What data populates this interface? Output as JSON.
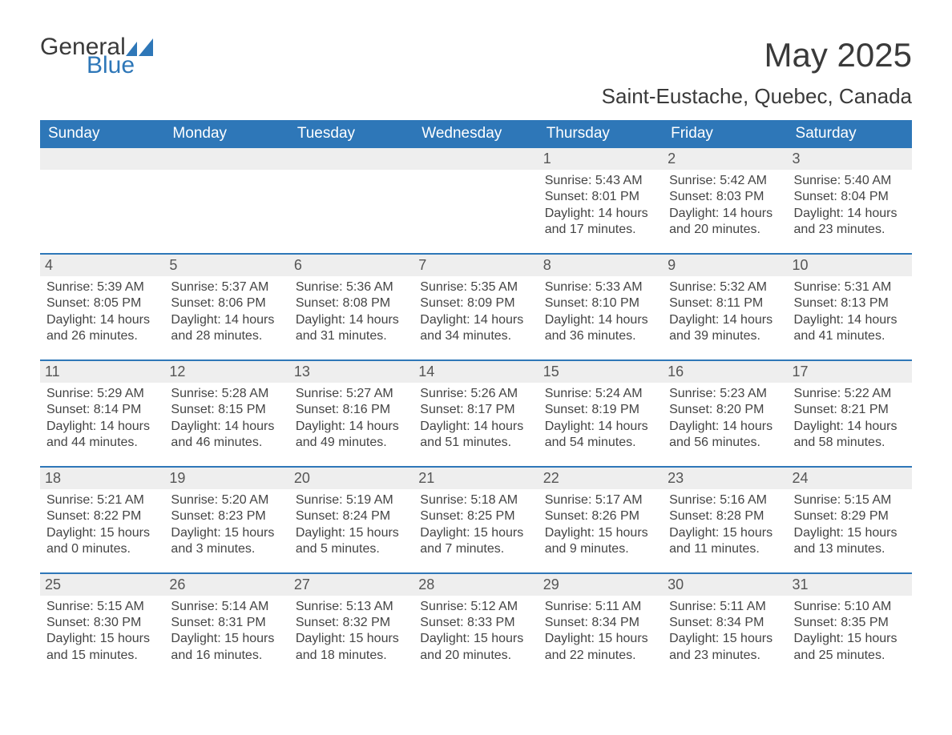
{
  "logo": {
    "general": "General",
    "blue": "Blue",
    "glyph_color": "#2e77b8"
  },
  "header": {
    "month_title": "May 2025",
    "location": "Saint-Eustache, Quebec, Canada"
  },
  "colors": {
    "header_bg": "#2e77b8",
    "header_fg": "#ffffff",
    "daynum_bg": "#eeeeee",
    "daynum_border": "#2e77b8",
    "text": "#3a3a3a"
  },
  "days_of_week": [
    "Sunday",
    "Monday",
    "Tuesday",
    "Wednesday",
    "Thursday",
    "Friday",
    "Saturday"
  ],
  "weeks": [
    [
      null,
      null,
      null,
      null,
      {
        "n": "1",
        "sr": "5:43 AM",
        "ss": "8:01 PM",
        "dl": "14 hours and 17 minutes."
      },
      {
        "n": "2",
        "sr": "5:42 AM",
        "ss": "8:03 PM",
        "dl": "14 hours and 20 minutes."
      },
      {
        "n": "3",
        "sr": "5:40 AM",
        "ss": "8:04 PM",
        "dl": "14 hours and 23 minutes."
      }
    ],
    [
      {
        "n": "4",
        "sr": "5:39 AM",
        "ss": "8:05 PM",
        "dl": "14 hours and 26 minutes."
      },
      {
        "n": "5",
        "sr": "5:37 AM",
        "ss": "8:06 PM",
        "dl": "14 hours and 28 minutes."
      },
      {
        "n": "6",
        "sr": "5:36 AM",
        "ss": "8:08 PM",
        "dl": "14 hours and 31 minutes."
      },
      {
        "n": "7",
        "sr": "5:35 AM",
        "ss": "8:09 PM",
        "dl": "14 hours and 34 minutes."
      },
      {
        "n": "8",
        "sr": "5:33 AM",
        "ss": "8:10 PM",
        "dl": "14 hours and 36 minutes."
      },
      {
        "n": "9",
        "sr": "5:32 AM",
        "ss": "8:11 PM",
        "dl": "14 hours and 39 minutes."
      },
      {
        "n": "10",
        "sr": "5:31 AM",
        "ss": "8:13 PM",
        "dl": "14 hours and 41 minutes."
      }
    ],
    [
      {
        "n": "11",
        "sr": "5:29 AM",
        "ss": "8:14 PM",
        "dl": "14 hours and 44 minutes."
      },
      {
        "n": "12",
        "sr": "5:28 AM",
        "ss": "8:15 PM",
        "dl": "14 hours and 46 minutes."
      },
      {
        "n": "13",
        "sr": "5:27 AM",
        "ss": "8:16 PM",
        "dl": "14 hours and 49 minutes."
      },
      {
        "n": "14",
        "sr": "5:26 AM",
        "ss": "8:17 PM",
        "dl": "14 hours and 51 minutes."
      },
      {
        "n": "15",
        "sr": "5:24 AM",
        "ss": "8:19 PM",
        "dl": "14 hours and 54 minutes."
      },
      {
        "n": "16",
        "sr": "5:23 AM",
        "ss": "8:20 PM",
        "dl": "14 hours and 56 minutes."
      },
      {
        "n": "17",
        "sr": "5:22 AM",
        "ss": "8:21 PM",
        "dl": "14 hours and 58 minutes."
      }
    ],
    [
      {
        "n": "18",
        "sr": "5:21 AM",
        "ss": "8:22 PM",
        "dl": "15 hours and 0 minutes."
      },
      {
        "n": "19",
        "sr": "5:20 AM",
        "ss": "8:23 PM",
        "dl": "15 hours and 3 minutes."
      },
      {
        "n": "20",
        "sr": "5:19 AM",
        "ss": "8:24 PM",
        "dl": "15 hours and 5 minutes."
      },
      {
        "n": "21",
        "sr": "5:18 AM",
        "ss": "8:25 PM",
        "dl": "15 hours and 7 minutes."
      },
      {
        "n": "22",
        "sr": "5:17 AM",
        "ss": "8:26 PM",
        "dl": "15 hours and 9 minutes."
      },
      {
        "n": "23",
        "sr": "5:16 AM",
        "ss": "8:28 PM",
        "dl": "15 hours and 11 minutes."
      },
      {
        "n": "24",
        "sr": "5:15 AM",
        "ss": "8:29 PM",
        "dl": "15 hours and 13 minutes."
      }
    ],
    [
      {
        "n": "25",
        "sr": "5:15 AM",
        "ss": "8:30 PM",
        "dl": "15 hours and 15 minutes."
      },
      {
        "n": "26",
        "sr": "5:14 AM",
        "ss": "8:31 PM",
        "dl": "15 hours and 16 minutes."
      },
      {
        "n": "27",
        "sr": "5:13 AM",
        "ss": "8:32 PM",
        "dl": "15 hours and 18 minutes."
      },
      {
        "n": "28",
        "sr": "5:12 AM",
        "ss": "8:33 PM",
        "dl": "15 hours and 20 minutes."
      },
      {
        "n": "29",
        "sr": "5:11 AM",
        "ss": "8:34 PM",
        "dl": "15 hours and 22 minutes."
      },
      {
        "n": "30",
        "sr": "5:11 AM",
        "ss": "8:34 PM",
        "dl": "15 hours and 23 minutes."
      },
      {
        "n": "31",
        "sr": "5:10 AM",
        "ss": "8:35 PM",
        "dl": "15 hours and 25 minutes."
      }
    ]
  ],
  "labels": {
    "sunrise": "Sunrise: ",
    "sunset": "Sunset: ",
    "daylight": "Daylight: "
  }
}
